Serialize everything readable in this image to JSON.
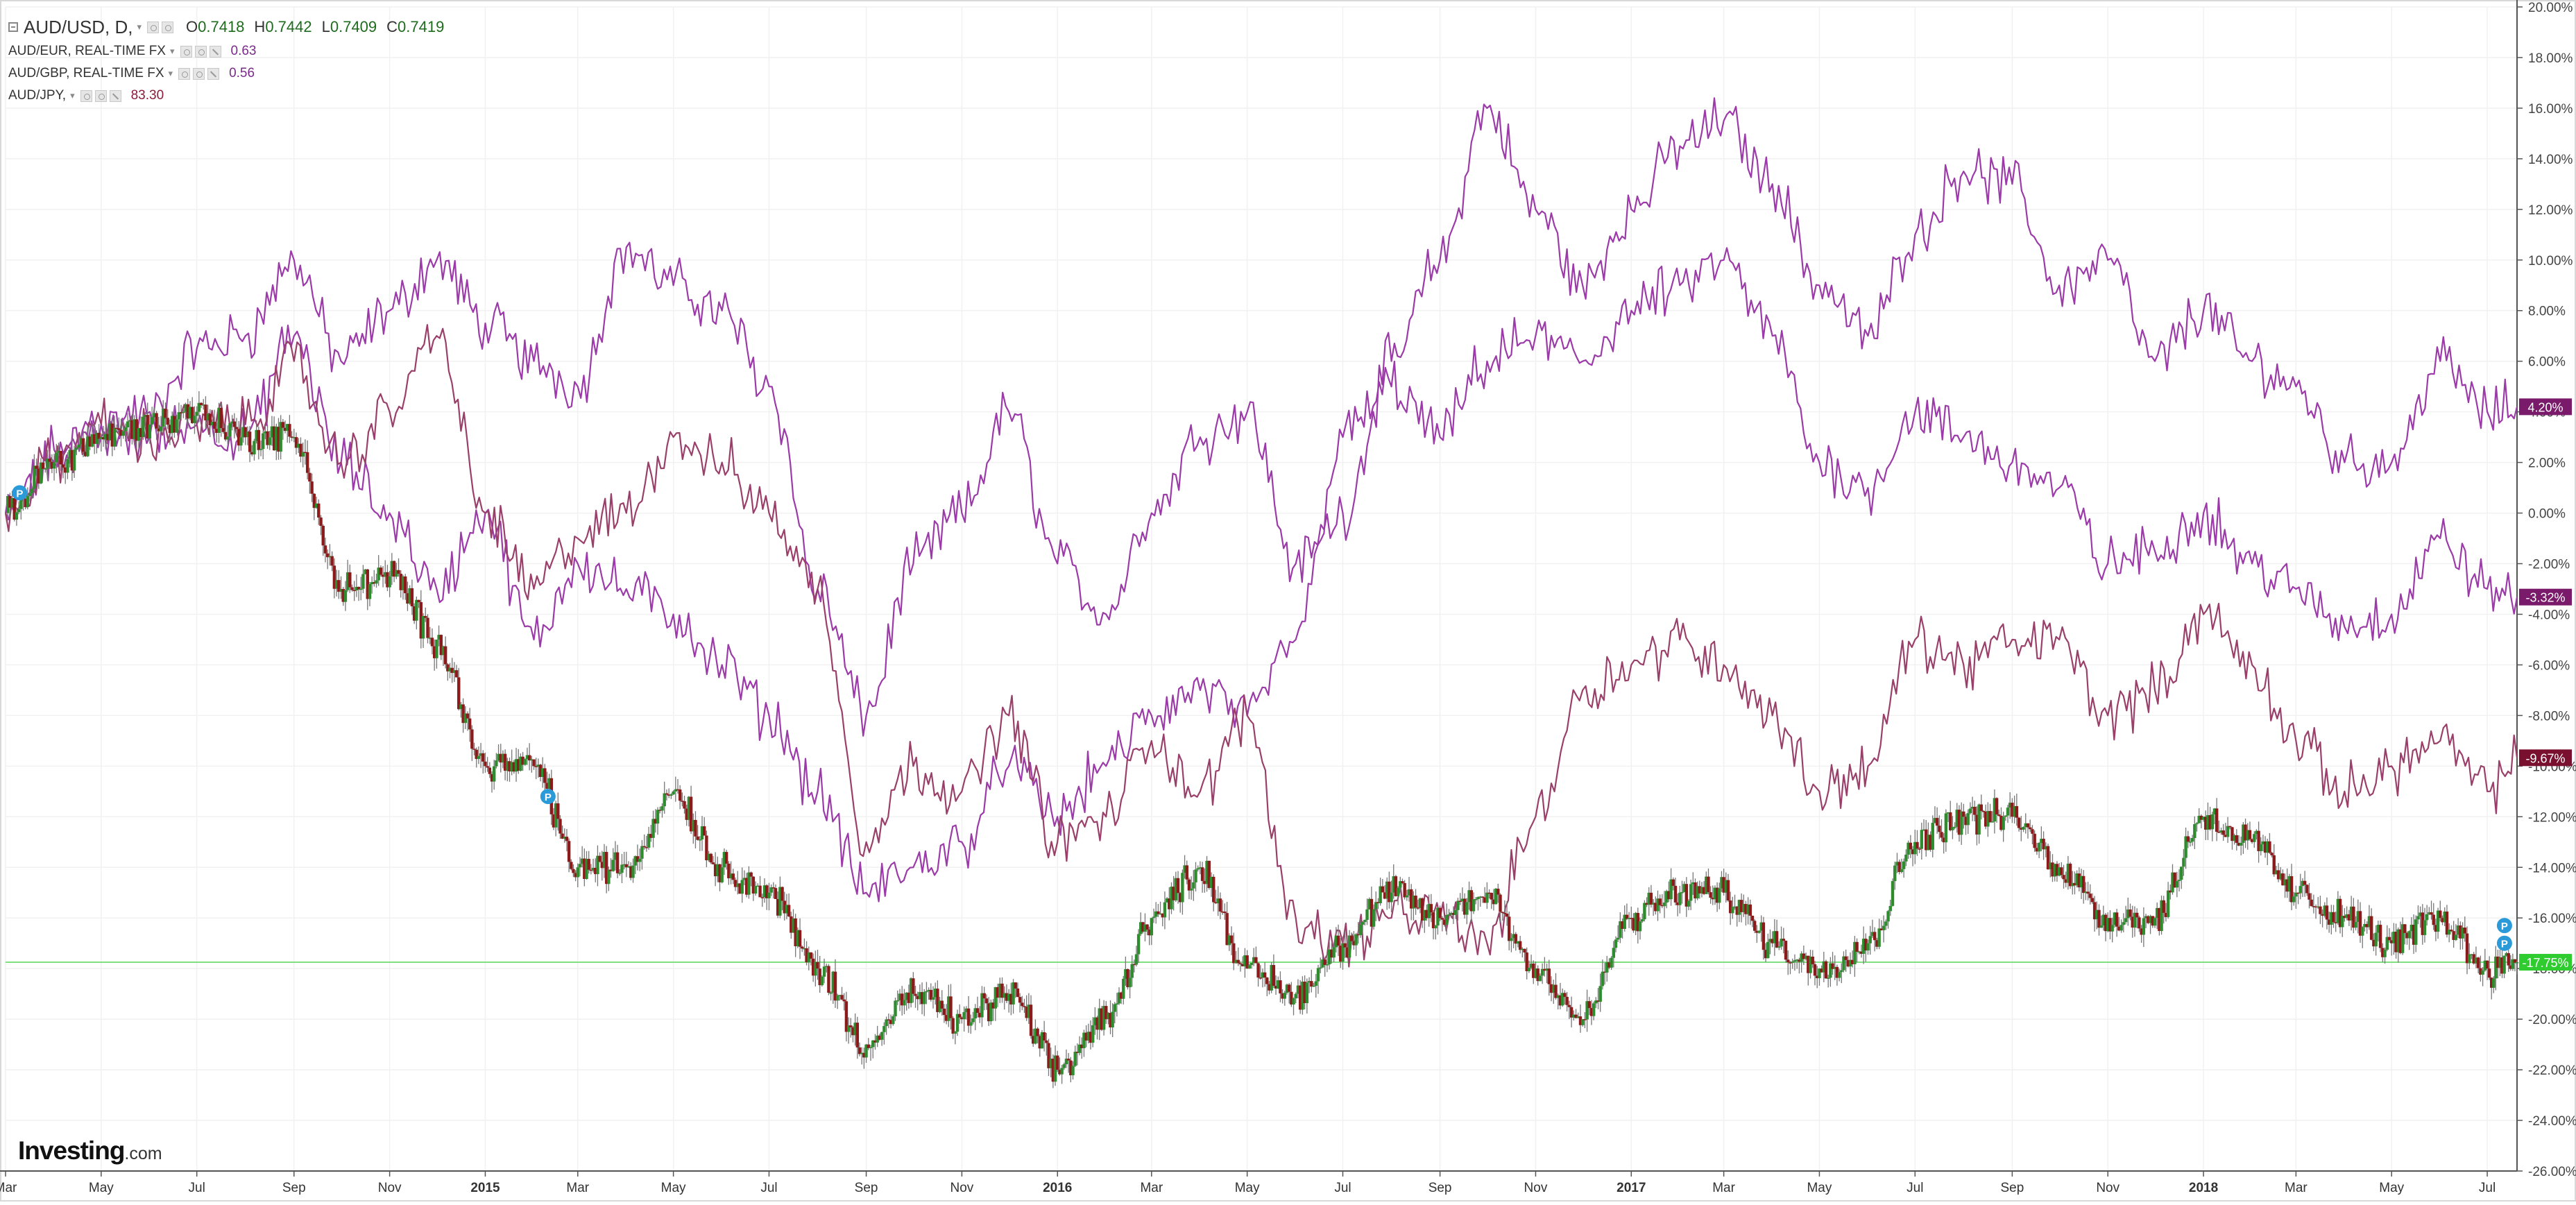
{
  "legend": {
    "main": {
      "symbol": "AUD/USD, D,",
      "o_label": "O",
      "o": "0.7418",
      "h_label": "H",
      "h": "0.7442",
      "l_label": "L",
      "l": "0.7409",
      "c_label": "C",
      "c": "0.7419"
    },
    "overlays": [
      {
        "symbol": "AUD/EUR, REAL-TIME FX",
        "value": "0.63",
        "color": "#7a2a8a"
      },
      {
        "symbol": "AUD/GBP, REAL-TIME FX",
        "value": "0.56",
        "color": "#7a2a8a"
      },
      {
        "symbol": "AUD/JPY,",
        "value": "83.30",
        "color": "#8b1a3a"
      }
    ]
  },
  "watermark": {
    "brand": "Investing",
    "tld": ".com"
  },
  "markers": [
    "P",
    "P",
    "P",
    "P"
  ],
  "chart_data": {
    "type": "line",
    "y_unit": "percent change",
    "ylim": [
      -26,
      20
    ],
    "y_ticks": [
      20,
      18,
      16,
      14,
      12,
      10,
      8,
      6,
      4,
      2,
      0,
      -2,
      -4,
      -6,
      -8,
      -10,
      -12,
      -14,
      -16,
      -18,
      -20,
      -22,
      -24,
      -26
    ],
    "y_tick_labels": [
      "20.00%",
      "18.00%",
      "16.00%",
      "14.00%",
      "12.00%",
      "10.00%",
      "8.00%",
      "6.00%",
      "4.00%",
      "2.00%",
      "0.00%",
      "-2.00%",
      "-4.00%",
      "-6.00%",
      "-8.00%",
      "-10.00%",
      "-12.00%",
      "-14.00%",
      "-16.00%",
      "-18.00%",
      "-20.00%",
      "-22.00%",
      "-24.00%",
      "-26.00%"
    ],
    "x_range": [
      "2014-03-01",
      "2018-07-20"
    ],
    "x_ticks": [
      {
        "date": "2014-03-01",
        "label": "Mar",
        "bold": false
      },
      {
        "date": "2014-05-01",
        "label": "May",
        "bold": false
      },
      {
        "date": "2014-07-01",
        "label": "Jul",
        "bold": false
      },
      {
        "date": "2014-09-01",
        "label": "Sep",
        "bold": false
      },
      {
        "date": "2014-11-01",
        "label": "Nov",
        "bold": false
      },
      {
        "date": "2015-01-01",
        "label": "2015",
        "bold": true
      },
      {
        "date": "2015-03-01",
        "label": "Mar",
        "bold": false
      },
      {
        "date": "2015-05-01",
        "label": "May",
        "bold": false
      },
      {
        "date": "2015-07-01",
        "label": "Jul",
        "bold": false
      },
      {
        "date": "2015-09-01",
        "label": "Sep",
        "bold": false
      },
      {
        "date": "2015-11-01",
        "label": "Nov",
        "bold": false
      },
      {
        "date": "2016-01-01",
        "label": "2016",
        "bold": true
      },
      {
        "date": "2016-03-01",
        "label": "Mar",
        "bold": false
      },
      {
        "date": "2016-05-01",
        "label": "May",
        "bold": false
      },
      {
        "date": "2016-07-01",
        "label": "Jul",
        "bold": false
      },
      {
        "date": "2016-09-01",
        "label": "Sep",
        "bold": false
      },
      {
        "date": "2016-11-01",
        "label": "Nov",
        "bold": false
      },
      {
        "date": "2017-01-01",
        "label": "2017",
        "bold": true
      },
      {
        "date": "2017-03-01",
        "label": "Mar",
        "bold": false
      },
      {
        "date": "2017-05-01",
        "label": "May",
        "bold": false
      },
      {
        "date": "2017-07-01",
        "label": "Jul",
        "bold": false
      },
      {
        "date": "2017-09-01",
        "label": "Sep",
        "bold": false
      },
      {
        "date": "2017-11-01",
        "label": "Nov",
        "bold": false
      },
      {
        "date": "2018-01-01",
        "label": "2018",
        "bold": true
      },
      {
        "date": "2018-03-01",
        "label": "Mar",
        "bold": false
      },
      {
        "date": "2018-05-01",
        "label": "May",
        "bold": false
      },
      {
        "date": "2018-07-01",
        "label": "Jul",
        "bold": false
      }
    ],
    "grid": true,
    "reference_line": {
      "value": -17.75,
      "color": "#7fe07f"
    },
    "series": [
      {
        "name": "AUD/EUR, REAL-TIME FX",
        "style": "line",
        "color": "#9b3aa8",
        "last_label": "4.20%",
        "points": [
          [
            "2014-03-01",
            0
          ],
          [
            "2014-04-01",
            2
          ],
          [
            "2014-05-01",
            3.5
          ],
          [
            "2014-06-01",
            4
          ],
          [
            "2014-07-01",
            6.5
          ],
          [
            "2014-08-01",
            7
          ],
          [
            "2014-09-01",
            10
          ],
          [
            "2014-10-01",
            6
          ],
          [
            "2014-11-01",
            8
          ],
          [
            "2014-12-01",
            10
          ],
          [
            "2015-01-01",
            7.5
          ],
          [
            "2015-02-01",
            6
          ],
          [
            "2015-03-01",
            5
          ],
          [
            "2015-04-01",
            10.5
          ],
          [
            "2015-05-01",
            9
          ],
          [
            "2015-06-01",
            8
          ],
          [
            "2015-07-01",
            5
          ],
          [
            "2015-08-01",
            -3
          ],
          [
            "2015-09-01",
            -8
          ],
          [
            "2015-10-01",
            -2
          ],
          [
            "2015-11-01",
            0
          ],
          [
            "2015-12-01",
            4
          ],
          [
            "2016-01-01",
            -2
          ],
          [
            "2016-02-01",
            -4
          ],
          [
            "2016-03-01",
            0
          ],
          [
            "2016-04-01",
            3
          ],
          [
            "2016-05-01",
            4
          ],
          [
            "2016-06-01",
            -2
          ],
          [
            "2016-07-01",
            0
          ],
          [
            "2016-08-01",
            6
          ],
          [
            "2016-09-01",
            10
          ],
          [
            "2016-10-01",
            16
          ],
          [
            "2016-11-01",
            12
          ],
          [
            "2016-12-01",
            9
          ],
          [
            "2017-01-01",
            12
          ],
          [
            "2017-02-01",
            14.5
          ],
          [
            "2017-03-01",
            15.5
          ],
          [
            "2017-04-01",
            13
          ],
          [
            "2017-05-01",
            9
          ],
          [
            "2017-06-01",
            7
          ],
          [
            "2017-07-01",
            11
          ],
          [
            "2017-08-01",
            13.5
          ],
          [
            "2017-09-01",
            13
          ],
          [
            "2017-10-01",
            9
          ],
          [
            "2017-11-01",
            10
          ],
          [
            "2017-12-01",
            6
          ],
          [
            "2018-01-01",
            8
          ],
          [
            "2018-02-01",
            6
          ],
          [
            "2018-03-01",
            5
          ],
          [
            "2018-04-01",
            2
          ],
          [
            "2018-05-01",
            2
          ],
          [
            "2018-06-01",
            6
          ],
          [
            "2018-07-01",
            4
          ],
          [
            "2018-07-20",
            4.2
          ]
        ]
      },
      {
        "name": "AUD/GBP, REAL-TIME FX",
        "style": "line",
        "color": "#9b3aa8",
        "last_label": "-3.32%",
        "points": [
          [
            "2014-03-01",
            0
          ],
          [
            "2014-04-01",
            2.5
          ],
          [
            "2014-05-01",
            3
          ],
          [
            "2014-06-01",
            3
          ],
          [
            "2014-07-01",
            3.5
          ],
          [
            "2014-08-01",
            3
          ],
          [
            "2014-09-01",
            7
          ],
          [
            "2014-10-01",
            2
          ],
          [
            "2014-11-01",
            0
          ],
          [
            "2014-12-01",
            -3
          ],
          [
            "2015-01-01",
            0
          ],
          [
            "2015-02-01",
            -5
          ],
          [
            "2015-03-01",
            -2
          ],
          [
            "2015-04-01",
            -3
          ],
          [
            "2015-05-01",
            -4
          ],
          [
            "2015-06-01",
            -6
          ],
          [
            "2015-07-01",
            -8
          ],
          [
            "2015-08-01",
            -11
          ],
          [
            "2015-09-01",
            -15
          ],
          [
            "2015-10-01",
            -14
          ],
          [
            "2015-11-01",
            -13
          ],
          [
            "2015-12-01",
            -10
          ],
          [
            "2016-01-01",
            -12
          ],
          [
            "2016-02-01",
            -10
          ],
          [
            "2016-03-01",
            -8
          ],
          [
            "2016-04-01",
            -7
          ],
          [
            "2016-05-01",
            -8
          ],
          [
            "2016-06-01",
            -5
          ],
          [
            "2016-07-01",
            3
          ],
          [
            "2016-08-01",
            5
          ],
          [
            "2016-09-01",
            3
          ],
          [
            "2016-10-01",
            6
          ],
          [
            "2016-11-01",
            7
          ],
          [
            "2016-12-01",
            6
          ],
          [
            "2017-01-01",
            8
          ],
          [
            "2017-02-01",
            9
          ],
          [
            "2017-03-01",
            10
          ],
          [
            "2017-04-01",
            7
          ],
          [
            "2017-05-01",
            2
          ],
          [
            "2017-06-01",
            1
          ],
          [
            "2017-07-01",
            4
          ],
          [
            "2017-08-01",
            3
          ],
          [
            "2017-09-01",
            2
          ],
          [
            "2017-10-01",
            1
          ],
          [
            "2017-11-01",
            -2
          ],
          [
            "2017-12-01",
            -1.5
          ],
          [
            "2018-01-01",
            0
          ],
          [
            "2018-02-01",
            -2
          ],
          [
            "2018-03-01",
            -3
          ],
          [
            "2018-04-01",
            -4.5
          ],
          [
            "2018-05-01",
            -4
          ],
          [
            "2018-06-01",
            -1
          ],
          [
            "2018-07-01",
            -3
          ],
          [
            "2018-07-20",
            -3.32
          ]
        ]
      },
      {
        "name": "AUD/JPY,",
        "style": "line",
        "color": "#9a3f6a",
        "last_label": "-9.67%",
        "points": [
          [
            "2014-03-01",
            0
          ],
          [
            "2014-04-01",
            2
          ],
          [
            "2014-05-01",
            3.5
          ],
          [
            "2014-06-01",
            3
          ],
          [
            "2014-07-01",
            3.5
          ],
          [
            "2014-08-01",
            3.5
          ],
          [
            "2014-09-01",
            6
          ],
          [
            "2014-10-01",
            2
          ],
          [
            "2014-11-01",
            4
          ],
          [
            "2014-12-01",
            7
          ],
          [
            "2015-01-01",
            0
          ],
          [
            "2015-02-01",
            -3
          ],
          [
            "2015-03-01",
            -1
          ],
          [
            "2015-04-01",
            0
          ],
          [
            "2015-05-01",
            3
          ],
          [
            "2015-06-01",
            2
          ],
          [
            "2015-07-01",
            0
          ],
          [
            "2015-08-01",
            -3
          ],
          [
            "2015-09-01",
            -13
          ],
          [
            "2015-10-01",
            -10
          ],
          [
            "2015-11-01",
            -11
          ],
          [
            "2015-12-01",
            -8
          ],
          [
            "2016-01-01",
            -13
          ],
          [
            "2016-02-01",
            -12
          ],
          [
            "2016-03-01",
            -9
          ],
          [
            "2016-04-01",
            -11
          ],
          [
            "2016-05-01",
            -8
          ],
          [
            "2016-06-01",
            -16
          ],
          [
            "2016-07-01",
            -17
          ],
          [
            "2016-08-01",
            -16
          ],
          [
            "2016-09-01",
            -16
          ],
          [
            "2016-10-01",
            -17
          ],
          [
            "2016-11-01",
            -12
          ],
          [
            "2016-12-01",
            -7
          ],
          [
            "2017-01-01",
            -6
          ],
          [
            "2017-02-01",
            -5
          ],
          [
            "2017-03-01",
            -6
          ],
          [
            "2017-04-01",
            -8
          ],
          [
            "2017-05-01",
            -11
          ],
          [
            "2017-06-01",
            -10
          ],
          [
            "2017-07-01",
            -5
          ],
          [
            "2017-08-01",
            -6
          ],
          [
            "2017-09-01",
            -5
          ],
          [
            "2017-10-01",
            -5
          ],
          [
            "2017-11-01",
            -8
          ],
          [
            "2017-12-01",
            -7
          ],
          [
            "2018-01-01",
            -4
          ],
          [
            "2018-02-01",
            -6
          ],
          [
            "2018-03-01",
            -9
          ],
          [
            "2018-04-01",
            -11
          ],
          [
            "2018-05-01",
            -10
          ],
          [
            "2018-06-01",
            -9
          ],
          [
            "2018-07-01",
            -11
          ],
          [
            "2018-07-20",
            -9.67
          ]
        ]
      },
      {
        "name": "AUD/USD, D,",
        "style": "candles",
        "color_up": "#2e8b2e",
        "color_down": "#8b1a1a",
        "last_label": "-17.75%",
        "label_color": "#2ecc2e",
        "points": [
          [
            "2014-03-01",
            0
          ],
          [
            "2014-04-01",
            2
          ],
          [
            "2014-05-01",
            3
          ],
          [
            "2014-06-01",
            3.5
          ],
          [
            "2014-07-01",
            4
          ],
          [
            "2014-08-01",
            3
          ],
          [
            "2014-09-01",
            3
          ],
          [
            "2014-10-01",
            -3
          ],
          [
            "2014-11-01",
            -2.5
          ],
          [
            "2014-12-01",
            -5
          ],
          [
            "2015-01-01",
            -10
          ],
          [
            "2015-02-01",
            -10
          ],
          [
            "2015-03-01",
            -14
          ],
          [
            "2015-04-01",
            -14
          ],
          [
            "2015-05-01",
            -11
          ],
          [
            "2015-06-01",
            -14
          ],
          [
            "2015-07-01",
            -15
          ],
          [
            "2015-08-01",
            -18
          ],
          [
            "2015-09-01",
            -21
          ],
          [
            "2015-10-01",
            -19
          ],
          [
            "2015-11-01",
            -20
          ],
          [
            "2015-12-01",
            -19
          ],
          [
            "2016-01-01",
            -22
          ],
          [
            "2016-02-01",
            -20
          ],
          [
            "2016-03-01",
            -16
          ],
          [
            "2016-04-01",
            -14
          ],
          [
            "2016-05-01",
            -18
          ],
          [
            "2016-06-01",
            -19
          ],
          [
            "2016-07-01",
            -17
          ],
          [
            "2016-08-01",
            -15
          ],
          [
            "2016-09-01",
            -16
          ],
          [
            "2016-10-01",
            -15
          ],
          [
            "2016-11-01",
            -18
          ],
          [
            "2016-12-01",
            -20
          ],
          [
            "2017-01-01",
            -16
          ],
          [
            "2017-02-01",
            -15
          ],
          [
            "2017-03-01",
            -15
          ],
          [
            "2017-04-01",
            -17
          ],
          [
            "2017-05-01",
            -18
          ],
          [
            "2017-06-01",
            -17
          ],
          [
            "2017-07-01",
            -13
          ],
          [
            "2017-08-01",
            -12
          ],
          [
            "2017-09-01",
            -12
          ],
          [
            "2017-10-01",
            -14
          ],
          [
            "2017-11-01",
            -16
          ],
          [
            "2017-12-01",
            -16
          ],
          [
            "2018-01-01",
            -12
          ],
          [
            "2018-02-01",
            -13
          ],
          [
            "2018-03-01",
            -15
          ],
          [
            "2018-04-01",
            -16
          ],
          [
            "2018-05-01",
            -17
          ],
          [
            "2018-06-01",
            -16
          ],
          [
            "2018-07-01",
            -18
          ],
          [
            "2018-07-20",
            -17.75
          ]
        ]
      }
    ]
  }
}
